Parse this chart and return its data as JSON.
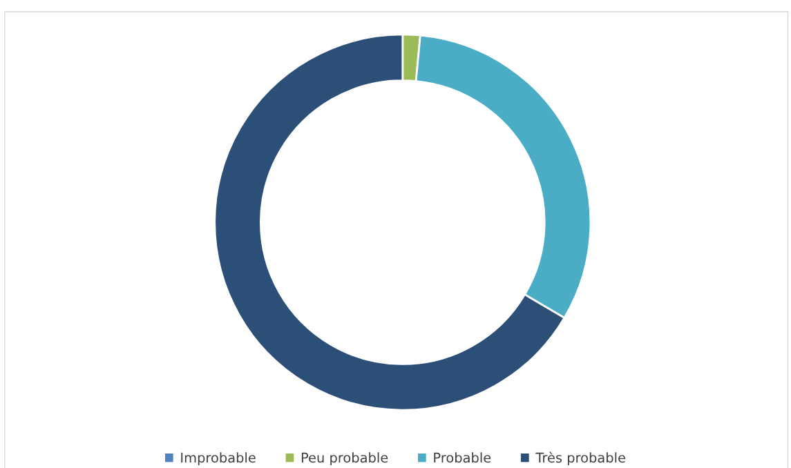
{
  "chart_data": {
    "type": "donut",
    "categories": [
      "Improbable",
      "Peu probable",
      "Probable",
      "Très probable"
    ],
    "values": [
      0,
      1.5,
      32,
      66.5
    ],
    "colors": [
      "#4f81bd",
      "#9bbb59",
      "#4bacc6",
      "#2c4f77"
    ],
    "legend": "bottom"
  }
}
